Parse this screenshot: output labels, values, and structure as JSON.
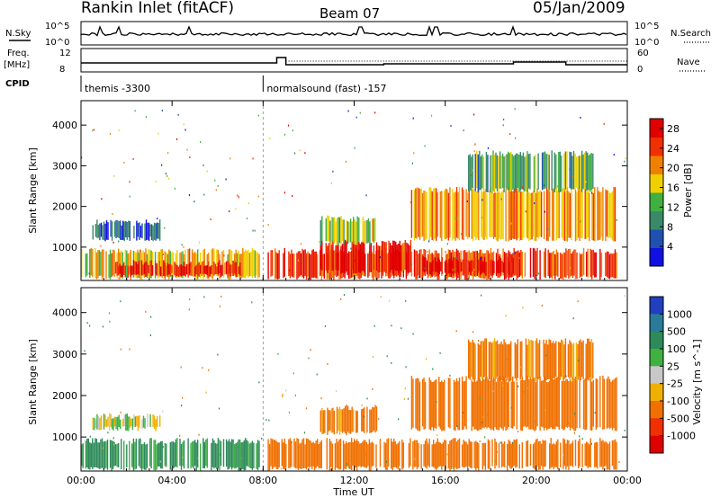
{
  "header": {
    "station": "Rankin Inlet (fitACF)",
    "beam": "Beam 07",
    "date": "05/Jan/2009"
  },
  "strip_nsky": {
    "left_label": "N.Sky",
    "left_ticks": [
      "10^5",
      "10^0"
    ],
    "right_label": "N.Search",
    "right_ticks": [
      "10^5",
      "10^0"
    ]
  },
  "strip_freq": {
    "left_label_1": "Freq.",
    "left_label_2": "[MHz]",
    "left_ticks": [
      "12",
      "8"
    ],
    "right_label": "Nave",
    "right_ticks": [
      "60",
      "0"
    ]
  },
  "cpid": {
    "label": "CPID",
    "segments": [
      {
        "start_hour": 0.0,
        "text": "themis -3300"
      },
      {
        "start_hour": 8.0,
        "text": "normalsound (fast) -157"
      }
    ]
  },
  "chart_data": [
    {
      "type": "heatmap",
      "panel": "power",
      "ylabel": "Slant Range [km]",
      "xlabel": "",
      "x_ticks": [
        "00:00",
        "04:00",
        "08:00",
        "12:00",
        "16:00",
        "20:00",
        "00:00"
      ],
      "x_range_hours": [
        0,
        24
      ],
      "y_ticks": [
        1000,
        2000,
        3000,
        4000
      ],
      "y_range_km": [
        180,
        4600
      ],
      "colorbar": {
        "label": "Power [dB]",
        "ticks": [
          "4",
          "8",
          "12",
          "16",
          "20",
          "24",
          "28"
        ],
        "range": [
          0,
          30
        ],
        "colors": [
          "#1010e0",
          "#2050b0",
          "#3a8a6a",
          "#40b040",
          "#f0d000",
          "#f08000",
          "#f03000",
          "#e00000"
        ]
      },
      "regions": [
        {
          "t0": 0.0,
          "t1": 7.8,
          "r0": 250,
          "r1": 900,
          "value": 18
        },
        {
          "t0": 1.5,
          "t1": 7.0,
          "r0": 300,
          "r1": 600,
          "value": 27
        },
        {
          "t0": 0.5,
          "t1": 3.5,
          "r0": 1200,
          "r1": 1600,
          "value": 6
        },
        {
          "t0": 8.2,
          "t1": 23.5,
          "r0": 250,
          "r1": 900,
          "value": 24
        },
        {
          "t0": 10.5,
          "t1": 14.5,
          "r0": 400,
          "r1": 1100,
          "value": 27
        },
        {
          "t0": 15.0,
          "t1": 19.0,
          "r0": 350,
          "r1": 700,
          "value": 28
        },
        {
          "t0": 14.5,
          "t1": 23.5,
          "r0": 1200,
          "r1": 2400,
          "value": 20
        },
        {
          "t0": 17.0,
          "t1": 22.5,
          "r0": 2400,
          "r1": 3300,
          "value": 12
        },
        {
          "t0": 10.5,
          "t1": 13.0,
          "r0": 1100,
          "r1": 1700,
          "value": 14
        }
      ]
    },
    {
      "type": "heatmap",
      "panel": "velocity",
      "ylabel": "Slant Range [km]",
      "xlabel": "Time UT",
      "x_ticks": [
        "00:00",
        "04:00",
        "08:00",
        "12:00",
        "16:00",
        "20:00",
        "00:00"
      ],
      "x_range_hours": [
        0,
        24
      ],
      "y_ticks": [
        1000,
        2000,
        3000,
        4000
      ],
      "y_range_km": [
        180,
        4600
      ],
      "colorbar": {
        "label": "Velocity [m s^-1]",
        "ticks": [
          "1000",
          "500",
          "100",
          "25",
          "-25",
          "-100",
          "-500",
          "-1000"
        ],
        "colors": [
          "#2040c0",
          "#2a7a9a",
          "#2e8a5a",
          "#40b040",
          "#c8c8c8",
          "#f0b000",
          "#f07000",
          "#f03000",
          "#e00000"
        ]
      },
      "regions": [
        {
          "t0": 0.0,
          "t1": 7.8,
          "r0": 250,
          "r1": 900,
          "value": 150
        },
        {
          "t0": 0.5,
          "t1": 3.5,
          "r0": 1200,
          "r1": 1500,
          "value": 0
        },
        {
          "t0": 8.2,
          "t1": 23.5,
          "r0": 250,
          "r1": 900,
          "value": -200
        },
        {
          "t0": 14.5,
          "t1": 23.5,
          "r0": 1200,
          "r1": 2400,
          "value": -300
        },
        {
          "t0": 17.0,
          "t1": 22.5,
          "r0": 2400,
          "r1": 3300,
          "value": -150
        },
        {
          "t0": 10.5,
          "t1": 13.0,
          "r0": 1100,
          "r1": 1700,
          "value": -150
        }
      ]
    }
  ]
}
